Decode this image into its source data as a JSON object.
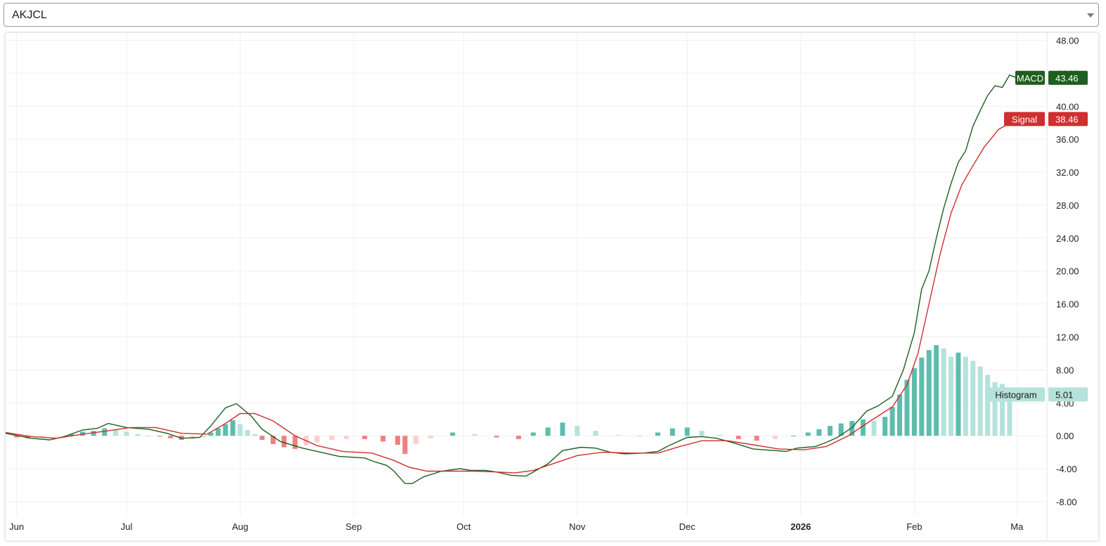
{
  "symbol_selector": {
    "value": "AKJCL"
  },
  "colors": {
    "macd": "#1e5e1e",
    "signal": "#cf2f2f",
    "hist_pos_strong": "#5cbdad",
    "hist_pos_weak": "#b5e2da",
    "hist_neg_strong": "#f08080",
    "hist_neg_weak": "#fbcfcf",
    "grid": "#f0f0f0"
  },
  "chart_data": {
    "type": "line",
    "title": "",
    "grid": true,
    "y_axis": {
      "range": [
        -9.8,
        48.9
      ],
      "ticks": [
        "48.00",
        "44.00",
        "40.00",
        "36.00",
        "32.00",
        "28.00",
        "24.00",
        "20.00",
        "16.00",
        "12.00",
        "8.00",
        "4.00",
        "0.00",
        "-4.00",
        "-8.00"
      ]
    },
    "x_axis": {
      "range": [
        "2025-05-29",
        "2026-03-09"
      ],
      "ticks": [
        {
          "date": "2025-06-01",
          "label": "Jun",
          "bold": false
        },
        {
          "date": "2025-07-01",
          "label": "Jul",
          "bold": false
        },
        {
          "date": "2025-08-01",
          "label": "Aug",
          "bold": false
        },
        {
          "date": "2025-09-01",
          "label": "Sep",
          "bold": false
        },
        {
          "date": "2025-10-01",
          "label": "Oct",
          "bold": false
        },
        {
          "date": "2025-11-01",
          "label": "Nov",
          "bold": false
        },
        {
          "date": "2025-12-01",
          "label": "Dec",
          "bold": false
        },
        {
          "date": "2026-01-01",
          "label": "2026",
          "bold": true
        },
        {
          "date": "2026-02-01",
          "label": "Feb",
          "bold": false
        },
        {
          "date": "2026-03-01",
          "label": "Ma",
          "bold": false
        }
      ]
    },
    "series": [
      {
        "name": "MACD",
        "last_value": "43.46",
        "points": [
          [
            "2025-05-29",
            0.3
          ],
          [
            "2025-06-05",
            -0.3
          ],
          [
            "2025-06-10",
            -0.5
          ],
          [
            "2025-06-14",
            -0.1
          ],
          [
            "2025-06-19",
            0.7
          ],
          [
            "2025-06-23",
            0.9
          ],
          [
            "2025-06-26",
            1.5
          ],
          [
            "2025-07-01",
            1.0
          ],
          [
            "2025-07-07",
            0.8
          ],
          [
            "2025-07-12",
            0.3
          ],
          [
            "2025-07-16",
            -0.3
          ],
          [
            "2025-07-21",
            -0.2
          ],
          [
            "2025-07-24",
            1.2
          ],
          [
            "2025-07-28",
            3.4
          ],
          [
            "2025-07-31",
            3.9
          ],
          [
            "2025-08-04",
            2.4
          ],
          [
            "2025-08-07",
            0.8
          ],
          [
            "2025-08-12",
            -0.7
          ],
          [
            "2025-08-18",
            -1.5
          ],
          [
            "2025-08-25",
            -2.2
          ],
          [
            "2025-08-28",
            -2.5
          ],
          [
            "2025-09-04",
            -2.7
          ],
          [
            "2025-09-07",
            -3.2
          ],
          [
            "2025-09-10",
            -3.6
          ],
          [
            "2025-09-12",
            -4.3
          ],
          [
            "2025-09-15",
            -5.8
          ],
          [
            "2025-09-17",
            -5.8
          ],
          [
            "2025-09-20",
            -5.0
          ],
          [
            "2025-09-25",
            -4.3
          ],
          [
            "2025-09-30",
            -4.0
          ],
          [
            "2025-10-03",
            -4.2
          ],
          [
            "2025-10-07",
            -4.2
          ],
          [
            "2025-10-10",
            -4.4
          ],
          [
            "2025-10-14",
            -4.8
          ],
          [
            "2025-10-18",
            -4.9
          ],
          [
            "2025-10-24",
            -3.4
          ],
          [
            "2025-10-28",
            -1.8
          ],
          [
            "2025-11-02",
            -1.4
          ],
          [
            "2025-11-06",
            -1.5
          ],
          [
            "2025-11-10",
            -2.0
          ],
          [
            "2025-11-14",
            -2.2
          ],
          [
            "2025-11-19",
            -2.1
          ],
          [
            "2025-11-23",
            -1.9
          ],
          [
            "2025-11-26",
            -1.2
          ],
          [
            "2025-12-01",
            -0.2
          ],
          [
            "2025-12-05",
            -0.1
          ],
          [
            "2025-12-09",
            -0.3
          ],
          [
            "2025-12-14",
            -0.9
          ],
          [
            "2025-12-19",
            -1.6
          ],
          [
            "2025-12-25",
            -1.8
          ],
          [
            "2025-12-28",
            -1.9
          ],
          [
            "2025-12-31",
            -1.5
          ],
          [
            "2026-01-05",
            -1.3
          ],
          [
            "2026-01-08",
            -0.8
          ],
          [
            "2026-01-11",
            -0.2
          ],
          [
            "2026-01-15",
            1.0
          ],
          [
            "2026-01-19",
            3.0
          ],
          [
            "2026-01-22",
            3.6
          ],
          [
            "2026-01-26",
            4.8
          ],
          [
            "2026-01-29",
            8.0
          ],
          [
            "2026-02-01",
            12.5
          ],
          [
            "2026-02-03",
            17.8
          ],
          [
            "2026-02-05",
            20.0
          ],
          [
            "2026-02-07",
            24.0
          ],
          [
            "2026-02-09",
            27.6
          ],
          [
            "2026-02-11",
            30.6
          ],
          [
            "2026-02-13",
            33.2
          ],
          [
            "2026-02-15",
            34.6
          ],
          [
            "2026-02-17",
            37.6
          ],
          [
            "2026-02-19",
            39.5
          ],
          [
            "2026-02-21",
            41.3
          ],
          [
            "2026-02-23",
            42.5
          ],
          [
            "2026-02-25",
            42.3
          ],
          [
            "2026-02-27",
            43.8
          ],
          [
            "2026-03-01",
            43.46
          ]
        ]
      },
      {
        "name": "Signal",
        "last_value": "38.46",
        "points": [
          [
            "2025-05-29",
            0.4
          ],
          [
            "2025-06-05",
            -0.1
          ],
          [
            "2025-06-12",
            -0.3
          ],
          [
            "2025-06-19",
            0.2
          ],
          [
            "2025-06-26",
            0.6
          ],
          [
            "2025-07-02",
            1.0
          ],
          [
            "2025-07-09",
            1.0
          ],
          [
            "2025-07-16",
            0.3
          ],
          [
            "2025-07-23",
            0.2
          ],
          [
            "2025-07-28",
            1.5
          ],
          [
            "2025-08-01",
            2.7
          ],
          [
            "2025-08-05",
            2.7
          ],
          [
            "2025-08-10",
            1.8
          ],
          [
            "2025-08-16",
            0.0
          ],
          [
            "2025-08-22",
            -1.2
          ],
          [
            "2025-08-29",
            -1.9
          ],
          [
            "2025-09-06",
            -2.1
          ],
          [
            "2025-09-12",
            -3.0
          ],
          [
            "2025-09-16",
            -3.8
          ],
          [
            "2025-09-21",
            -4.3
          ],
          [
            "2025-09-27",
            -4.3
          ],
          [
            "2025-10-04",
            -4.3
          ],
          [
            "2025-10-10",
            -4.4
          ],
          [
            "2025-10-15",
            -4.5
          ],
          [
            "2025-10-20",
            -4.2
          ],
          [
            "2025-10-26",
            -3.3
          ],
          [
            "2025-11-01",
            -2.4
          ],
          [
            "2025-11-08",
            -2.0
          ],
          [
            "2025-11-16",
            -2.1
          ],
          [
            "2025-11-23",
            -2.1
          ],
          [
            "2025-11-29",
            -1.3
          ],
          [
            "2025-12-05",
            -0.6
          ],
          [
            "2025-12-12",
            -0.6
          ],
          [
            "2025-12-19",
            -1.1
          ],
          [
            "2025-12-26",
            -1.6
          ],
          [
            "2026-01-02",
            -1.7
          ],
          [
            "2026-01-08",
            -1.3
          ],
          [
            "2026-01-14",
            0.0
          ],
          [
            "2026-01-20",
            1.8
          ],
          [
            "2026-01-26",
            3.5
          ],
          [
            "2026-01-30",
            6.2
          ],
          [
            "2026-02-02",
            10.0
          ],
          [
            "2026-02-05",
            16.0
          ],
          [
            "2026-02-08",
            22.0
          ],
          [
            "2026-02-11",
            27.0
          ],
          [
            "2026-02-14",
            30.5
          ],
          [
            "2026-02-17",
            32.8
          ],
          [
            "2026-02-20",
            35.0
          ],
          [
            "2026-02-24",
            37.2
          ],
          [
            "2026-03-01",
            38.46
          ]
        ]
      },
      {
        "name": "Histogram",
        "last_value": "5.01",
        "type": "bar",
        "points": [
          [
            "2025-06-01",
            -0.2
          ],
          [
            "2025-06-04",
            -0.3
          ],
          [
            "2025-06-08",
            -0.2
          ],
          [
            "2025-06-12",
            -0.1
          ],
          [
            "2025-06-16",
            0.2
          ],
          [
            "2025-06-19",
            0.5
          ],
          [
            "2025-06-22",
            0.6
          ],
          [
            "2025-06-25",
            0.9
          ],
          [
            "2025-06-28",
            0.7
          ],
          [
            "2025-07-01",
            0.5
          ],
          [
            "2025-07-04",
            0.2
          ],
          [
            "2025-07-07",
            0.0
          ],
          [
            "2025-07-10",
            -0.1
          ],
          [
            "2025-07-13",
            -0.3
          ],
          [
            "2025-07-16",
            -0.5
          ],
          [
            "2025-07-19",
            -0.4
          ],
          [
            "2025-07-22",
            -0.2
          ],
          [
            "2025-07-24",
            0.4
          ],
          [
            "2025-07-26",
            0.9
          ],
          [
            "2025-07-28",
            1.4
          ],
          [
            "2025-07-30",
            1.9
          ],
          [
            "2025-08-01",
            1.4
          ],
          [
            "2025-08-03",
            0.7
          ],
          [
            "2025-08-05",
            0.2
          ],
          [
            "2025-08-07",
            -0.5
          ],
          [
            "2025-08-10",
            -1.0
          ],
          [
            "2025-08-13",
            -1.4
          ],
          [
            "2025-08-16",
            -1.6
          ],
          [
            "2025-08-19",
            -1.2
          ],
          [
            "2025-08-22",
            -0.8
          ],
          [
            "2025-08-26",
            -0.5
          ],
          [
            "2025-08-30",
            -0.4
          ],
          [
            "2025-09-04",
            -0.4
          ],
          [
            "2025-09-09",
            -0.7
          ],
          [
            "2025-09-13",
            -1.1
          ],
          [
            "2025-09-15",
            -2.2
          ],
          [
            "2025-09-18",
            -1.0
          ],
          [
            "2025-09-22",
            -0.3
          ],
          [
            "2025-09-28",
            0.4
          ],
          [
            "2025-10-04",
            0.2
          ],
          [
            "2025-10-10",
            -0.2
          ],
          [
            "2025-10-16",
            -0.4
          ],
          [
            "2025-10-20",
            0.4
          ],
          [
            "2025-10-24",
            1.0
          ],
          [
            "2025-10-28",
            1.6
          ],
          [
            "2025-11-01",
            1.2
          ],
          [
            "2025-11-06",
            0.6
          ],
          [
            "2025-11-12",
            0.1
          ],
          [
            "2025-11-18",
            0.0
          ],
          [
            "2025-11-23",
            0.4
          ],
          [
            "2025-11-27",
            0.9
          ],
          [
            "2025-12-01",
            1.0
          ],
          [
            "2025-12-05",
            0.6
          ],
          [
            "2025-12-10",
            0.1
          ],
          [
            "2025-12-15",
            -0.4
          ],
          [
            "2025-12-20",
            -0.6
          ],
          [
            "2025-12-25",
            -0.4
          ],
          [
            "2025-12-30",
            0.0
          ],
          [
            "2026-01-03",
            0.4
          ],
          [
            "2026-01-06",
            0.8
          ],
          [
            "2026-01-09",
            1.2
          ],
          [
            "2026-01-12",
            1.5
          ],
          [
            "2026-01-15",
            1.8
          ],
          [
            "2026-01-18",
            2.0
          ],
          [
            "2026-01-21",
            1.8
          ],
          [
            "2026-01-24",
            2.3
          ],
          [
            "2026-01-26",
            3.5
          ],
          [
            "2026-01-28",
            5.0
          ],
          [
            "2026-01-30",
            6.8
          ],
          [
            "2026-02-01",
            8.2
          ],
          [
            "2026-02-03",
            9.5
          ],
          [
            "2026-02-05",
            10.4
          ],
          [
            "2026-02-07",
            11.0
          ],
          [
            "2026-02-09",
            10.6
          ],
          [
            "2026-02-11",
            9.6
          ],
          [
            "2026-02-13",
            10.1
          ],
          [
            "2026-02-15",
            9.6
          ],
          [
            "2026-02-17",
            9.1
          ],
          [
            "2026-02-19",
            8.4
          ],
          [
            "2026-02-21",
            7.4
          ],
          [
            "2026-02-23",
            6.5
          ],
          [
            "2026-02-25",
            6.3
          ],
          [
            "2026-02-27",
            5.01
          ]
        ]
      }
    ]
  }
}
